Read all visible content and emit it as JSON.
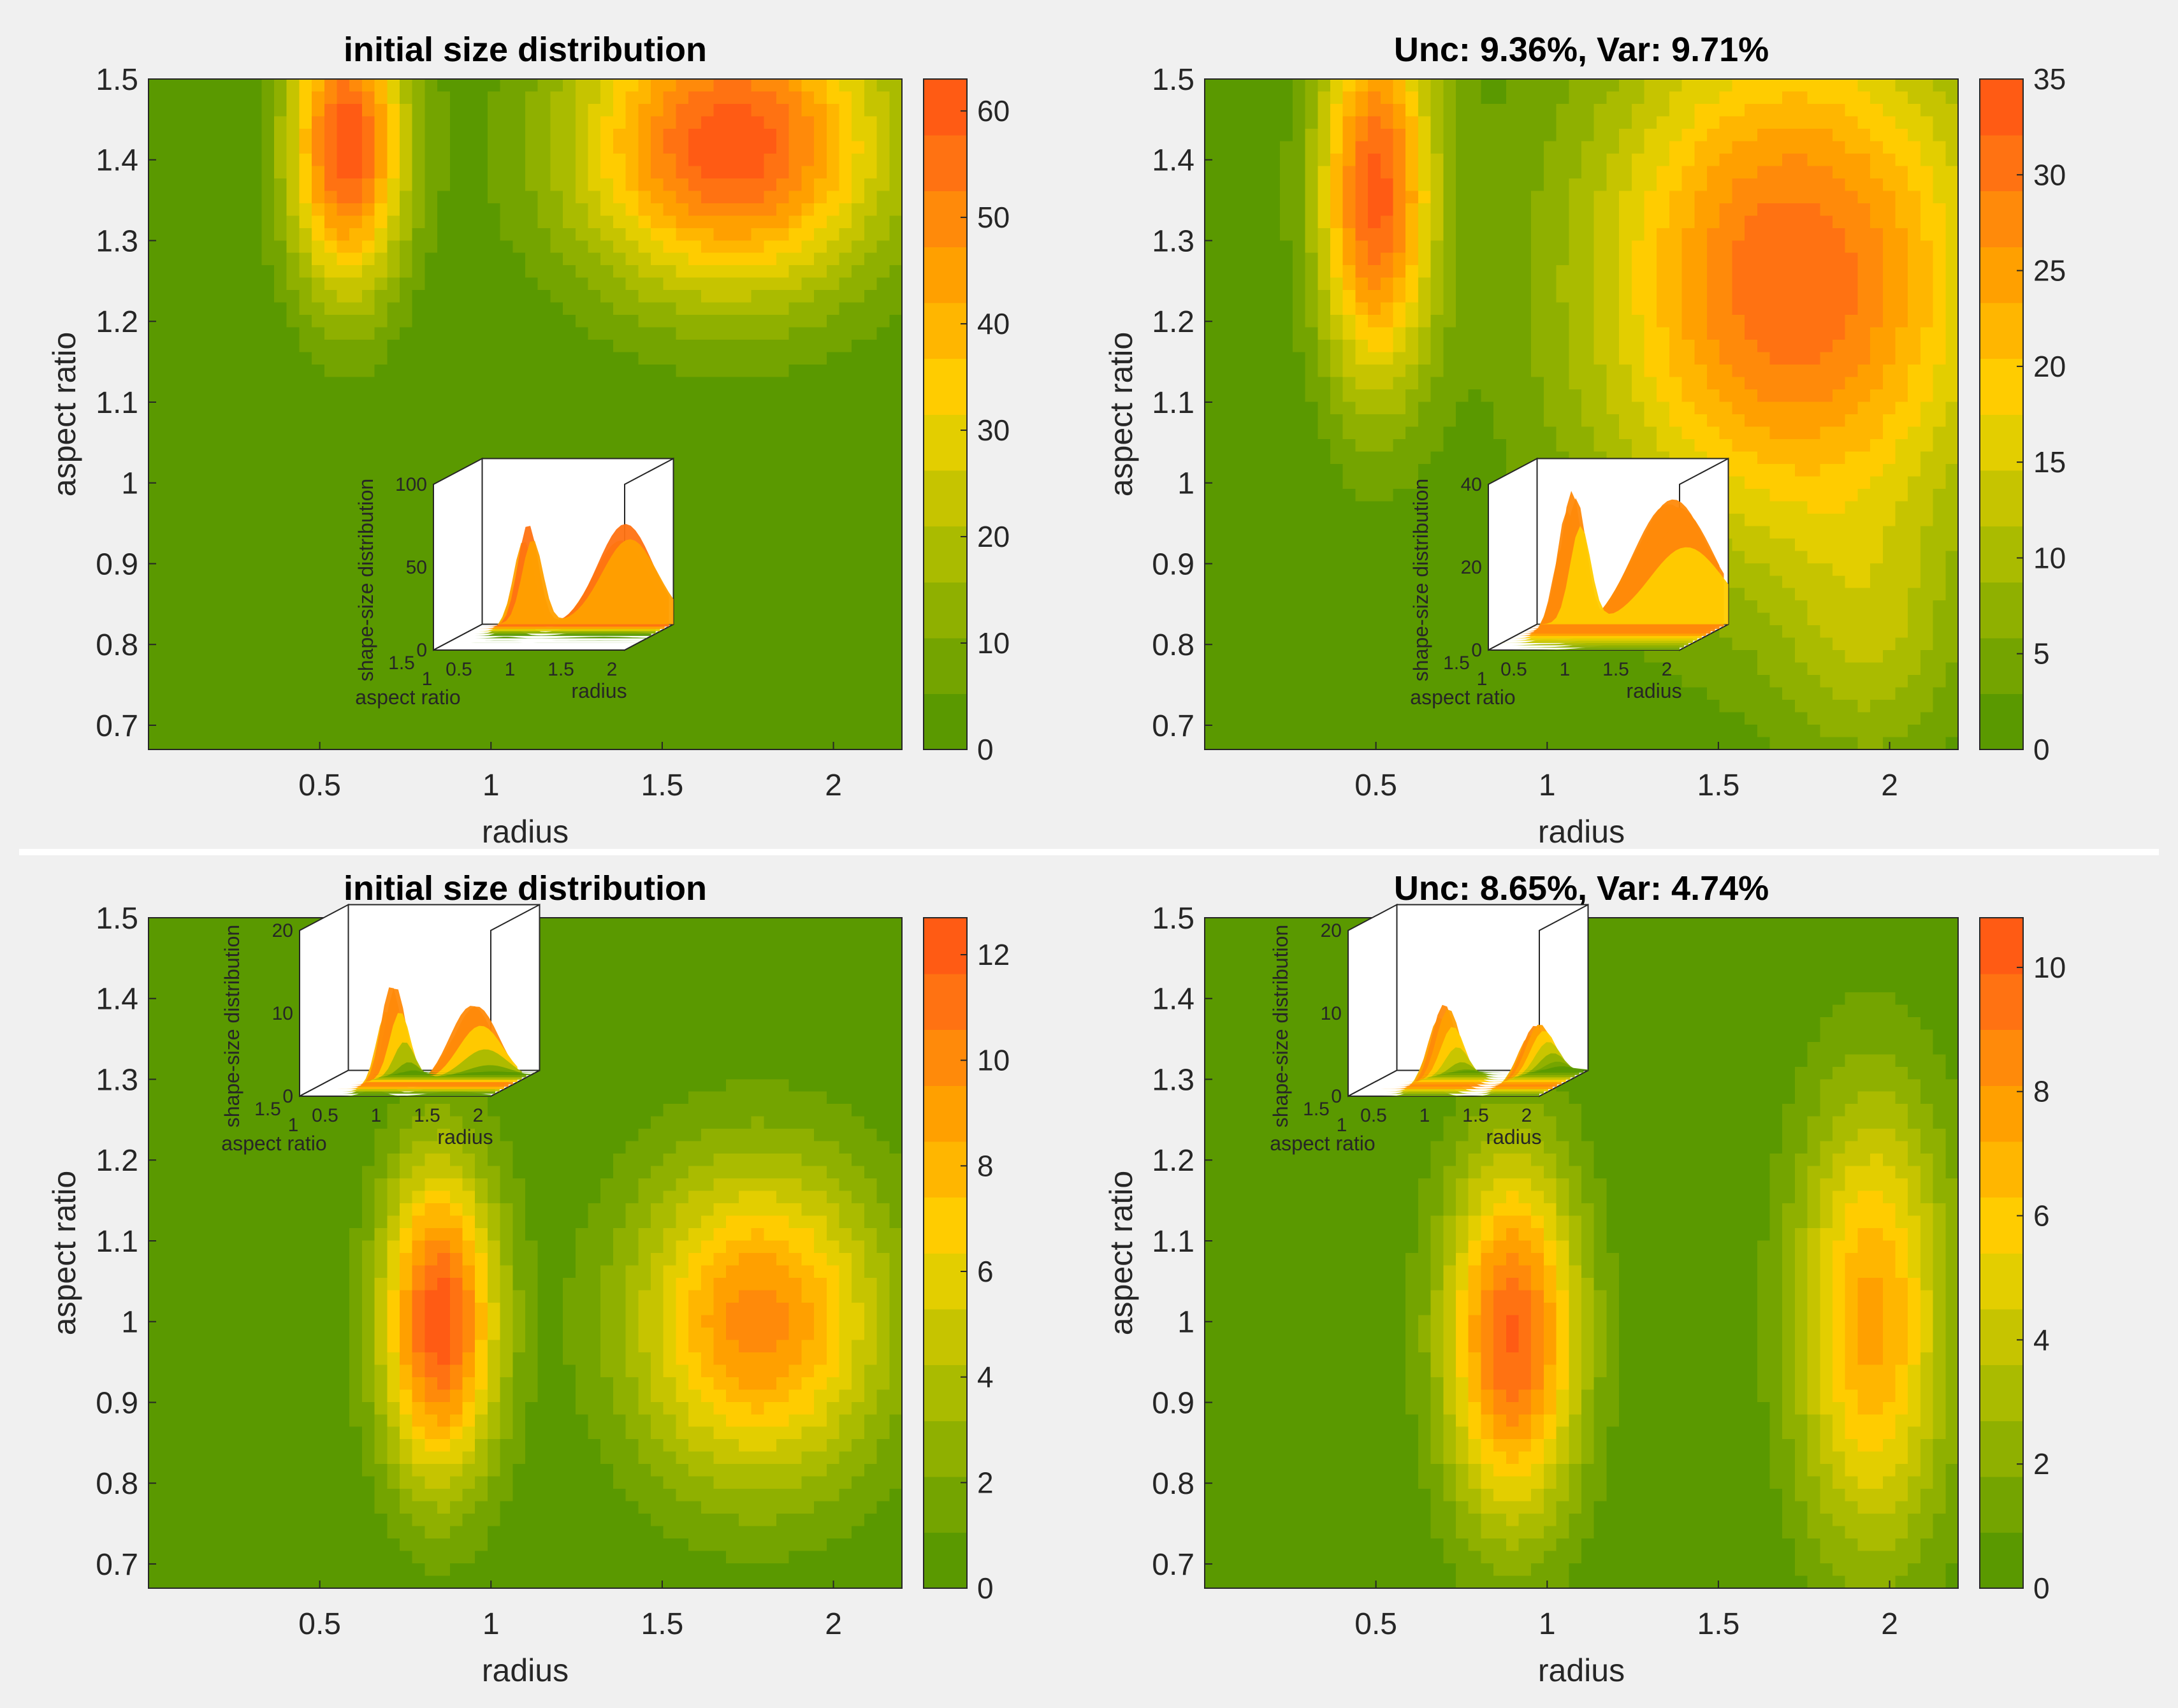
{
  "figure": {
    "colormap": [
      "#5a9900",
      "#74a400",
      "#8fb000",
      "#aabb00",
      "#c6c400",
      "#e3ce00",
      "#ffcc00",
      "#ffb600",
      "#ffa000",
      "#ff8a0a",
      "#ff7212",
      "#ff5b14"
    ]
  },
  "chart_data": [
    {
      "type": "heatmap",
      "title": "initial size distribution",
      "xlabel": "radius",
      "ylabel": "aspect ratio",
      "xlim": [
        0.0,
        2.2
      ],
      "ylim": [
        0.67,
        1.5
      ],
      "xticks": [
        "0.5",
        "1",
        "1.5",
        "2"
      ],
      "yticks": [
        "0.7",
        "0.8",
        "0.9",
        "1",
        "1.1",
        "1.2",
        "1.3",
        "1.4",
        "1.5"
      ],
      "colorbar": {
        "min": 0,
        "max": 63,
        "ticks": [
          "0",
          "10",
          "20",
          "30",
          "40",
          "50",
          "60"
        ]
      },
      "peaks": [
        {
          "radius": 0.58,
          "aspect": 1.42,
          "value": 62,
          "sx": 0.12,
          "sy": 0.13
        },
        {
          "radius": 1.7,
          "aspect": 1.42,
          "value": 62,
          "sx": 0.32,
          "sy": 0.13
        }
      ],
      "inset": {
        "zlabel": "shape-size distribution",
        "ylabel": "aspect ratio",
        "xlabel": "radius",
        "zticks": [
          "0",
          "50",
          "100"
        ],
        "yticks": [
          "1.5",
          "1"
        ],
        "xticks": [
          "0.5",
          "1",
          "1.5",
          "2"
        ],
        "zmax": 100
      }
    },
    {
      "type": "heatmap",
      "title": "Unc: 9.36%, Var: 9.71%",
      "xlabel": "radius",
      "ylabel": "aspect ratio",
      "xlim": [
        0.0,
        2.2
      ],
      "ylim": [
        0.67,
        1.5
      ],
      "xticks": [
        "0.5",
        "1",
        "1.5",
        "2"
      ],
      "yticks": [
        "0.7",
        "0.8",
        "0.9",
        "1",
        "1.1",
        "1.2",
        "1.3",
        "1.4",
        "1.5"
      ],
      "colorbar": {
        "min": 0,
        "max": 35,
        "ticks": [
          "0",
          "5",
          "10",
          "15",
          "20",
          "25",
          "30",
          "35"
        ]
      },
      "peaks": [
        {
          "radius": 0.5,
          "aspect": 1.36,
          "value": 33,
          "sx": 0.12,
          "sy": 0.17
        },
        {
          "radius": 1.72,
          "aspect": 1.25,
          "value": 32,
          "sx": 0.42,
          "sy": 0.24
        },
        {
          "radius": 1.95,
          "aspect": 0.8,
          "value": 8,
          "sx": 0.18,
          "sy": 0.11
        }
      ],
      "inset": {
        "zlabel": "shape-size distribution",
        "ylabel": "aspect ratio",
        "xlabel": "radius",
        "zticks": [
          "0",
          "20",
          "40"
        ],
        "yticks": [
          "1.5",
          "1"
        ],
        "xticks": [
          "0.5",
          "1",
          "1.5",
          "2"
        ],
        "zmax": 40
      }
    },
    {
      "type": "heatmap",
      "title": "initial size distribution",
      "xlabel": "radius",
      "ylabel": "aspect ratio",
      "xlim": [
        0.0,
        2.2
      ],
      "ylim": [
        0.67,
        1.5
      ],
      "xticks": [
        "0.5",
        "1",
        "1.5",
        "2"
      ],
      "yticks": [
        "0.7",
        "0.8",
        "0.9",
        "1",
        "1.1",
        "1.2",
        "1.3",
        "1.4",
        "1.5"
      ],
      "colorbar": {
        "min": 0,
        "max": 12.7,
        "ticks": [
          "0",
          "2",
          "4",
          "6",
          "8",
          "10",
          "12"
        ]
      },
      "peaks": [
        {
          "radius": 0.85,
          "aspect": 1.0,
          "value": 12.5,
          "sx": 0.12,
          "sy": 0.14
        },
        {
          "radius": 1.78,
          "aspect": 1.0,
          "value": 10,
          "sx": 0.26,
          "sy": 0.14
        }
      ],
      "inset": {
        "zlabel": "shape-size distribution",
        "ylabel": "aspect ratio",
        "xlabel": "radius",
        "zticks": [
          "0",
          "10",
          "20"
        ],
        "yticks": [
          "1.5",
          "1"
        ],
        "xticks": [
          "0.5",
          "1",
          "1.5",
          "2"
        ],
        "zmax": 20
      }
    },
    {
      "type": "heatmap",
      "title": "Unc: 8.65%, Var: 4.74%",
      "xlabel": "radius",
      "ylabel": "aspect ratio",
      "xlim": [
        0.0,
        2.2
      ],
      "ylim": [
        0.67,
        1.5
      ],
      "xticks": [
        "0.5",
        "1",
        "1.5",
        "2"
      ],
      "yticks": [
        "0.7",
        "0.8",
        "0.9",
        "1",
        "1.1",
        "1.2",
        "1.3",
        "1.4",
        "1.5"
      ],
      "colorbar": {
        "min": 0,
        "max": 10.8,
        "ticks": [
          "0",
          "2",
          "4",
          "6",
          "8",
          "10"
        ]
      },
      "peaks": [
        {
          "radius": 0.9,
          "aspect": 0.98,
          "value": 10,
          "sx": 0.14,
          "sy": 0.16
        },
        {
          "radius": 1.95,
          "aspect": 1.0,
          "value": 7.5,
          "sx": 0.16,
          "sy": 0.2
        }
      ],
      "inset": {
        "zlabel": "shape-size distribution",
        "ylabel": "aspect ratio",
        "xlabel": "radius",
        "zticks": [
          "0",
          "10",
          "20"
        ],
        "yticks": [
          "1.5",
          "1"
        ],
        "xticks": [
          "0.5",
          "1",
          "1.5",
          "2"
        ],
        "zmax": 20
      }
    }
  ]
}
